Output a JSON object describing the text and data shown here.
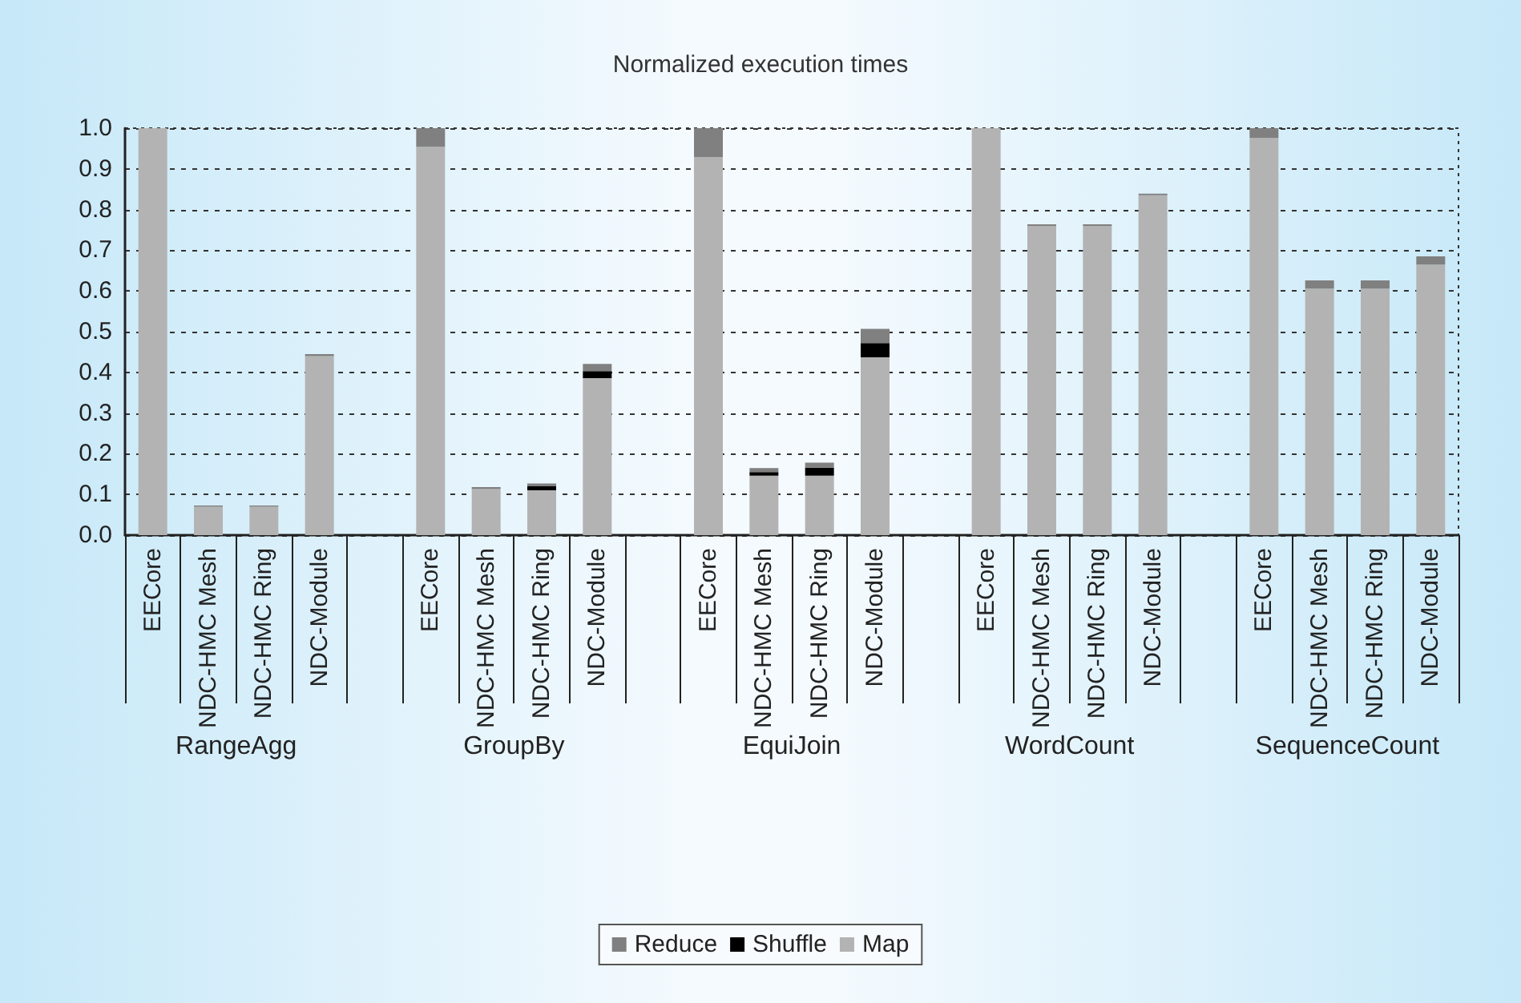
{
  "chart_data": {
    "type": "bar",
    "title": "Normalized execution times",
    "stacked": true,
    "categories": [
      "EECore",
      "NDC-HMC Mesh",
      "NDC-HMC Ring",
      "NDC-Module",
      null,
      "EECore",
      "NDC-HMC Mesh",
      "NDC-HMC Ring",
      "NDC-Module",
      null,
      "EECore",
      "NDC-HMC Mesh",
      "NDC-HMC Ring",
      "NDC-Module",
      null,
      "EECore",
      "NDC-HMC Mesh",
      "NDC-HMC Ring",
      "NDC-Module",
      null,
      "EECore",
      "NDC-HMC Mesh",
      "NDC-HMC Ring",
      "NDC-Module"
    ],
    "series": [
      {
        "name": "Map",
        "color": "#b3b3b3",
        "values": [
          1.0,
          0.07,
          0.07,
          0.44,
          null,
          0.954,
          0.113,
          0.11,
          0.386,
          null,
          0.929,
          0.146,
          0.146,
          0.437,
          null,
          1.0,
          0.76,
          0.76,
          0.835,
          null,
          0.976,
          0.606,
          0.606,
          0.665
        ]
      },
      {
        "name": "Shuffle",
        "color": "#000000",
        "values": [
          null,
          null,
          null,
          null,
          null,
          null,
          null,
          0.01,
          0.017,
          null,
          null,
          0.009,
          0.02,
          0.035,
          null,
          null,
          null,
          null,
          null,
          null,
          null,
          null,
          null,
          null
        ]
      },
      {
        "name": "Reduce",
        "color": "#808080",
        "values": [
          null,
          0.003,
          0.003,
          0.005,
          null,
          0.046,
          0.005,
          0.007,
          0.018,
          null,
          0.071,
          0.01,
          0.012,
          0.035,
          null,
          null,
          0.004,
          0.004,
          0.004,
          null,
          0.024,
          0.02,
          0.02,
          0.02
        ]
      }
    ],
    "ylim": [
      0,
      1
    ],
    "yticks": [
      {
        "value": 0,
        "label": "0.0"
      },
      0.1,
      0.2,
      0.3,
      0.4,
      0.5,
      0.6,
      0.7,
      0.8,
      0.9,
      {
        "value": 1,
        "label": "1.0"
      }
    ],
    "grid": "y",
    "legend": "bottom",
    "annotations": [
      "RangeAgg",
      "GroupBy",
      "EquiJoin",
      "WordCount",
      "SequenceCount"
    ]
  }
}
